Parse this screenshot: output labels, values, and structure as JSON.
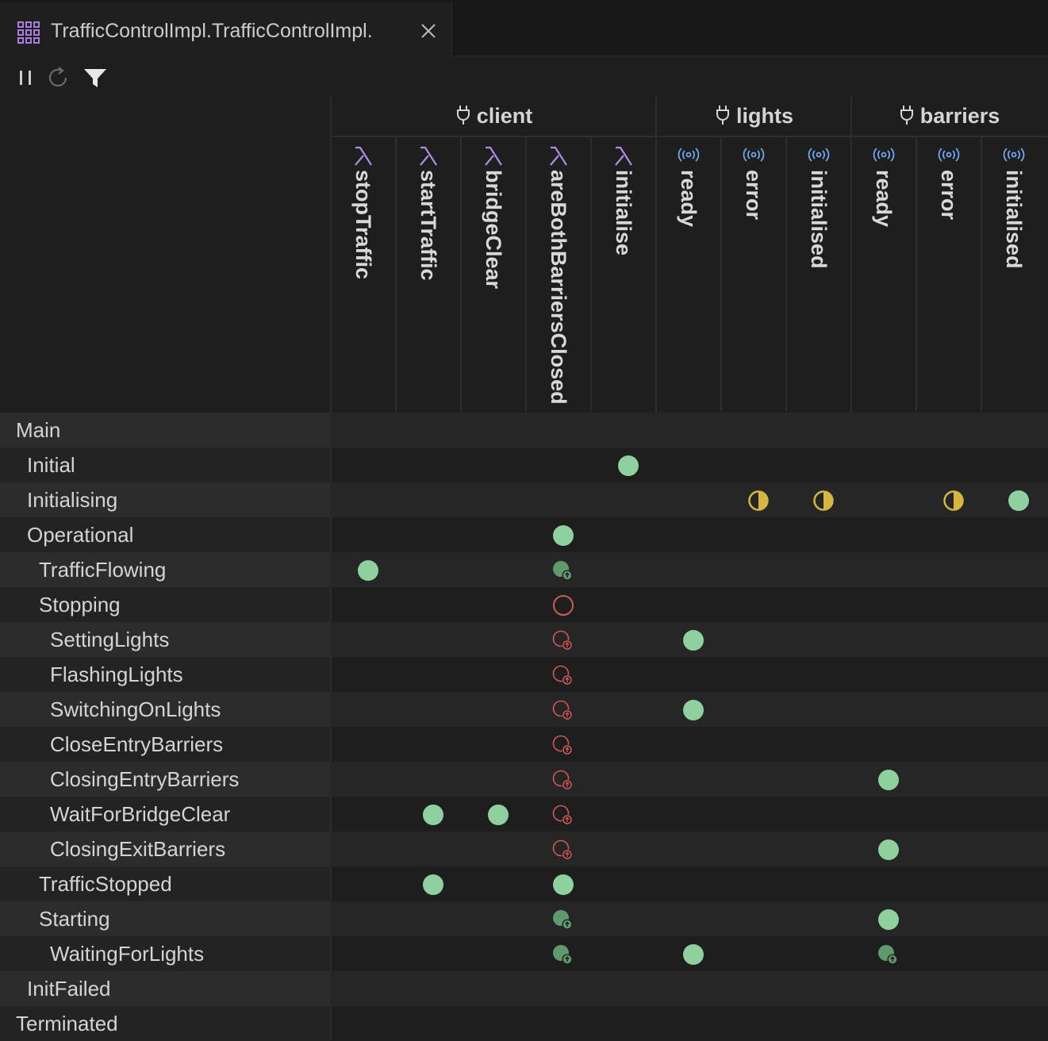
{
  "tab": {
    "title": "TrafficControlImpl.TrafficControlImpl.",
    "icon": "grid-icon",
    "close_icon": "close-icon"
  },
  "toolbar": {
    "pause_icon": "pause-icon",
    "refresh_icon": "refresh-icon",
    "filter_icon": "filter-icon"
  },
  "groups": [
    {
      "name": "client",
      "icon": "plug-icon"
    },
    {
      "name": "lights",
      "icon": "plug-icon"
    },
    {
      "name": "barriers",
      "icon": "plug-icon"
    }
  ],
  "columns": [
    {
      "label": "stopTraffic",
      "kind": "lambda",
      "group": "client"
    },
    {
      "label": "startTraffic",
      "kind": "lambda",
      "group": "client"
    },
    {
      "label": "bridgeClear",
      "kind": "lambda",
      "group": "client"
    },
    {
      "label": "areBothBarriersClosed",
      "kind": "lambda",
      "group": "client"
    },
    {
      "label": "initialise",
      "kind": "lambda",
      "group": "client"
    },
    {
      "label": "ready",
      "kind": "signal",
      "group": "lights"
    },
    {
      "label": "error",
      "kind": "signal",
      "group": "lights"
    },
    {
      "label": "initialised",
      "kind": "signal",
      "group": "lights"
    },
    {
      "label": "ready",
      "kind": "signal",
      "group": "barriers"
    },
    {
      "label": "error",
      "kind": "signal",
      "group": "barriers"
    },
    {
      "label": "initialised",
      "kind": "signal",
      "group": "barriers"
    }
  ],
  "states": [
    {
      "label": "Main",
      "depth": 0,
      "cells": []
    },
    {
      "label": "Initial",
      "depth": 1,
      "cells": [
        {
          "col": 4,
          "type": "full"
        }
      ]
    },
    {
      "label": "Initialising",
      "depth": 1,
      "cells": [
        {
          "col": 6,
          "type": "half"
        },
        {
          "col": 7,
          "type": "half"
        },
        {
          "col": 9,
          "type": "half"
        },
        {
          "col": 10,
          "type": "full"
        }
      ]
    },
    {
      "label": "Operational",
      "depth": 1,
      "cells": [
        {
          "col": 3,
          "type": "full"
        }
      ]
    },
    {
      "label": "TrafficFlowing",
      "depth": 2,
      "cells": [
        {
          "col": 0,
          "type": "full"
        },
        {
          "col": 3,
          "type": "inherited"
        }
      ]
    },
    {
      "label": "Stopping",
      "depth": 2,
      "cells": [
        {
          "col": 3,
          "type": "blocked"
        }
      ]
    },
    {
      "label": "SettingLights",
      "depth": 3,
      "cells": [
        {
          "col": 3,
          "type": "blocked-inherited"
        },
        {
          "col": 5,
          "type": "full"
        }
      ]
    },
    {
      "label": "FlashingLights",
      "depth": 3,
      "cells": [
        {
          "col": 3,
          "type": "blocked-inherited"
        }
      ]
    },
    {
      "label": "SwitchingOnLights",
      "depth": 3,
      "cells": [
        {
          "col": 3,
          "type": "blocked-inherited"
        },
        {
          "col": 5,
          "type": "full"
        }
      ]
    },
    {
      "label": "CloseEntryBarriers",
      "depth": 3,
      "cells": [
        {
          "col": 3,
          "type": "blocked-inherited"
        }
      ]
    },
    {
      "label": "ClosingEntryBarriers",
      "depth": 3,
      "cells": [
        {
          "col": 3,
          "type": "blocked-inherited"
        },
        {
          "col": 8,
          "type": "full"
        }
      ]
    },
    {
      "label": "WaitForBridgeClear",
      "depth": 3,
      "cells": [
        {
          "col": 1,
          "type": "full"
        },
        {
          "col": 2,
          "type": "full"
        },
        {
          "col": 3,
          "type": "blocked-inherited"
        }
      ]
    },
    {
      "label": "ClosingExitBarriers",
      "depth": 3,
      "cells": [
        {
          "col": 3,
          "type": "blocked-inherited"
        },
        {
          "col": 8,
          "type": "full"
        }
      ]
    },
    {
      "label": "TrafficStopped",
      "depth": 2,
      "cells": [
        {
          "col": 1,
          "type": "full"
        },
        {
          "col": 3,
          "type": "full"
        }
      ]
    },
    {
      "label": "Starting",
      "depth": 2,
      "cells": [
        {
          "col": 3,
          "type": "inherited"
        },
        {
          "col": 8,
          "type": "full"
        }
      ]
    },
    {
      "label": "WaitingForLights",
      "depth": 3,
      "cells": [
        {
          "col": 3,
          "type": "inherited"
        },
        {
          "col": 5,
          "type": "full"
        },
        {
          "col": 8,
          "type": "inherited"
        }
      ]
    },
    {
      "label": "InitFailed",
      "depth": 1,
      "cells": []
    },
    {
      "label": "Terminated",
      "depth": 0,
      "cells": []
    }
  ],
  "colors": {
    "full": "#8fd19e",
    "inherited": "#5f9a6d",
    "half": "#d4b640",
    "blocked": "#d05a54",
    "lambda": "#b48ae8",
    "signal": "#6fa8f0"
  }
}
